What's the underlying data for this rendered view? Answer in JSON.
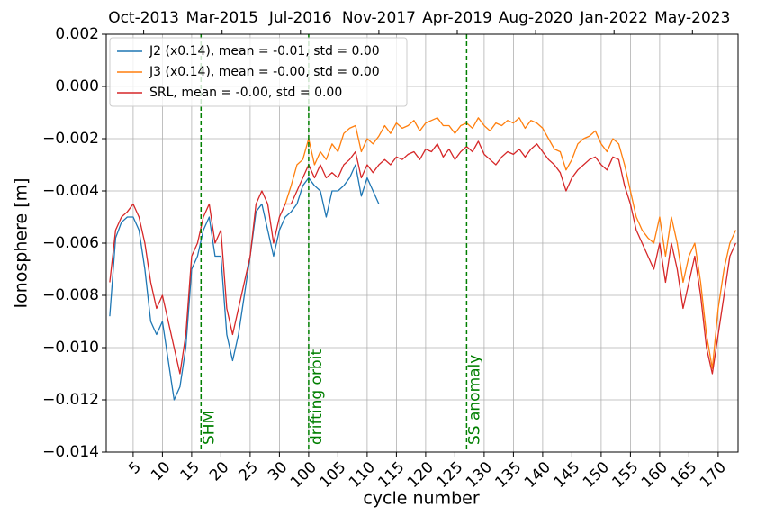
{
  "chart_data": {
    "type": "line",
    "x": [
      1,
      2,
      3,
      4,
      5,
      6,
      7,
      8,
      9,
      10,
      11,
      12,
      13,
      14,
      15,
      16,
      17,
      18,
      19,
      20,
      21,
      22,
      23,
      24,
      25,
      26,
      27,
      28,
      29,
      30,
      31,
      32,
      33,
      34,
      35,
      36,
      37,
      38,
      39,
      40,
      41,
      42,
      43,
      44,
      45,
      46,
      47,
      48,
      49,
      50,
      51,
      52,
      53,
      54,
      55,
      56,
      57,
      58,
      59,
      60,
      61,
      62,
      63,
      64,
      65,
      66,
      67,
      68,
      69,
      70,
      71,
      72,
      73,
      74,
      75,
      76,
      77,
      78,
      79,
      80,
      81,
      82,
      83,
      84,
      85,
      86,
      87,
      88,
      89,
      90,
      91,
      92,
      93,
      94,
      95,
      96,
      97,
      98,
      99,
      100,
      101,
      102,
      103,
      104,
      105,
      106,
      107,
      108
    ],
    "series": [
      {
        "name": "J2 (x0.14), mean = -0.01, std = 0.00",
        "color": "#1f77b4",
        "values": [
          -0.0088,
          -0.0058,
          -0.0052,
          -0.005,
          -0.005,
          -0.0055,
          -0.007,
          -0.009,
          -0.0095,
          -0.009,
          -0.0105,
          -0.012,
          -0.0115,
          -0.01,
          -0.007,
          -0.0065,
          -0.0055,
          -0.005,
          -0.0065,
          -0.0065,
          -0.0095,
          -0.0105,
          -0.0095,
          -0.008,
          -0.0065,
          -0.0048,
          -0.0045,
          -0.0055,
          -0.0065,
          -0.0055,
          -0.005,
          -0.0048,
          -0.0045,
          -0.0038,
          -0.0035,
          -0.0038,
          -0.004,
          -0.005,
          -0.004,
          -0.004,
          -0.0038,
          -0.0035,
          -0.003,
          -0.0042,
          -0.0035,
          -0.004,
          -0.0045,
          null,
          null,
          null,
          null,
          null,
          null,
          null,
          null,
          null,
          null,
          null,
          null,
          null,
          null,
          null,
          null,
          null,
          null,
          null,
          null,
          null,
          null,
          null,
          null,
          null,
          null,
          null,
          null,
          null,
          null,
          null,
          null,
          null,
          null,
          null,
          null,
          null,
          null,
          null,
          null,
          null,
          null,
          null,
          null,
          null,
          null,
          null,
          null,
          null,
          null,
          null,
          null,
          null,
          null,
          null,
          null,
          null,
          null,
          null,
          null,
          null
        ]
      },
      {
        "name": "J3 (x0.14), mean = -0.00, std = 0.00",
        "color": "#ff7f0e",
        "values": [
          null,
          null,
          null,
          null,
          null,
          null,
          null,
          null,
          null,
          null,
          null,
          null,
          null,
          null,
          null,
          null,
          null,
          null,
          null,
          null,
          null,
          null,
          null,
          null,
          null,
          null,
          null,
          null,
          null,
          null,
          -0.0045,
          -0.0038,
          -0.003,
          -0.0028,
          -0.002,
          -0.003,
          -0.0025,
          -0.0028,
          -0.0022,
          -0.0025,
          -0.0018,
          -0.0016,
          -0.0015,
          -0.0025,
          -0.002,
          -0.0022,
          -0.0019,
          -0.0015,
          -0.0018,
          -0.0014,
          -0.0016,
          -0.0015,
          -0.0013,
          -0.0017,
          -0.0014,
          -0.0013,
          -0.0012,
          -0.0015,
          -0.0015,
          -0.0018,
          -0.0015,
          -0.0014,
          -0.0016,
          -0.0012,
          -0.0015,
          -0.0017,
          -0.0014,
          -0.0015,
          -0.0013,
          -0.0014,
          -0.0012,
          -0.0016,
          -0.0013,
          -0.0014,
          -0.0016,
          -0.002,
          -0.0024,
          -0.0025,
          -0.0032,
          -0.0028,
          -0.0022,
          -0.002,
          -0.0019,
          -0.0017,
          -0.0022,
          -0.0025,
          -0.002,
          -0.0022,
          -0.003,
          -0.004,
          -0.005,
          -0.0055,
          -0.0058,
          -0.006,
          -0.005,
          -0.0065,
          -0.005,
          -0.006,
          -0.0075,
          -0.0065,
          -0.006,
          -0.0075,
          -0.0095,
          -0.0108,
          -0.0085,
          -0.007,
          -0.006,
          -0.0055
        ]
      },
      {
        "name": "SRL, mean = -0.00, std = 0.00",
        "color": "#d62728",
        "values": [
          -0.0075,
          -0.0055,
          -0.005,
          -0.0048,
          -0.0045,
          -0.005,
          -0.006,
          -0.0075,
          -0.0085,
          -0.008,
          -0.009,
          -0.01,
          -0.011,
          -0.0095,
          -0.0065,
          -0.006,
          -0.005,
          -0.0045,
          -0.006,
          -0.0055,
          -0.0085,
          -0.0095,
          -0.0085,
          -0.0075,
          -0.0065,
          -0.0045,
          -0.004,
          -0.0045,
          -0.006,
          -0.005,
          -0.0045,
          -0.0045,
          -0.004,
          -0.0035,
          -0.003,
          -0.0035,
          -0.003,
          -0.0035,
          -0.0033,
          -0.0035,
          -0.003,
          -0.0028,
          -0.0025,
          -0.0035,
          -0.003,
          -0.0033,
          -0.003,
          -0.0028,
          -0.003,
          -0.0027,
          -0.0028,
          -0.0026,
          -0.0025,
          -0.0028,
          -0.0024,
          -0.0025,
          -0.0022,
          -0.0027,
          -0.0024,
          -0.0028,
          -0.0025,
          -0.0023,
          -0.0025,
          -0.0021,
          -0.0026,
          -0.0028,
          -0.003,
          -0.0027,
          -0.0025,
          -0.0026,
          -0.0024,
          -0.0027,
          -0.0024,
          -0.0022,
          -0.0025,
          -0.0028,
          -0.003,
          -0.0033,
          -0.004,
          -0.0035,
          -0.0032,
          -0.003,
          -0.0028,
          -0.0027,
          -0.003,
          -0.0032,
          -0.0027,
          -0.0028,
          -0.0038,
          -0.0045,
          -0.0055,
          -0.006,
          -0.0065,
          -0.007,
          -0.006,
          -0.0075,
          -0.006,
          -0.007,
          -0.0085,
          -0.0075,
          -0.0065,
          -0.008,
          -0.01,
          -0.011,
          -0.0095,
          -0.008,
          -0.0065,
          -0.006
        ]
      }
    ],
    "xlabel": "cycle number",
    "ylabel": "Ionosphere [m]",
    "xlim": [
      0.4,
      108.4
    ],
    "ylim": [
      -0.014,
      0.002
    ],
    "xticks": [
      5,
      10,
      15,
      20,
      25,
      30,
      {
        "value": 35,
        "label": "100"
      },
      {
        "value": 40,
        "label": "105"
      },
      {
        "value": 45,
        "label": "110"
      },
      {
        "value": 50,
        "label": "115"
      },
      {
        "value": 55,
        "label": "120"
      },
      {
        "value": 60,
        "label": "125"
      },
      {
        "value": 65,
        "label": "130"
      },
      {
        "value": 70,
        "label": "135"
      },
      {
        "value": 75,
        "label": "140"
      },
      {
        "value": 80,
        "label": "145"
      },
      {
        "value": 85,
        "label": "150"
      },
      {
        "value": 90,
        "label": "155"
      },
      {
        "value": 95,
        "label": "160"
      },
      {
        "value": 100,
        "label": "165"
      },
      {
        "value": 105,
        "label": "170"
      }
    ],
    "x2ticks": [
      {
        "value": 6.8,
        "label": "Oct-2013"
      },
      {
        "value": 20.2,
        "label": "Mar-2015"
      },
      {
        "value": 33.6,
        "label": "Jul-2016"
      },
      {
        "value": 47.0,
        "label": "Nov-2017"
      },
      {
        "value": 60.4,
        "label": "Apr-2019"
      },
      {
        "value": 73.8,
        "label": "Aug-2020"
      },
      {
        "value": 87.2,
        "label": "Jan-2022"
      },
      {
        "value": 100.6,
        "label": "May-2023"
      }
    ],
    "yticks": [
      {
        "value": 0.002,
        "label": "0.002"
      },
      {
        "value": 0,
        "label": "0.000"
      },
      {
        "value": -0.002,
        "label": "−0.002"
      },
      {
        "value": -0.004,
        "label": "−0.004"
      },
      {
        "value": -0.006,
        "label": "−0.006"
      },
      {
        "value": -0.008,
        "label": "−0.008"
      },
      {
        "value": -0.01,
        "label": "−0.010"
      },
      {
        "value": -0.012,
        "label": "−0.012"
      },
      {
        "value": -0.014,
        "label": "−0.014"
      }
    ],
    "annotations": [
      {
        "x": 16.6,
        "text": "SHM"
      },
      {
        "x": 35.0,
        "text": "drifting orbit"
      },
      {
        "x": 62.0,
        "text": "SS anomaly"
      }
    ],
    "annotation_color": "#007f00",
    "grid": true,
    "legend": "upper left"
  }
}
